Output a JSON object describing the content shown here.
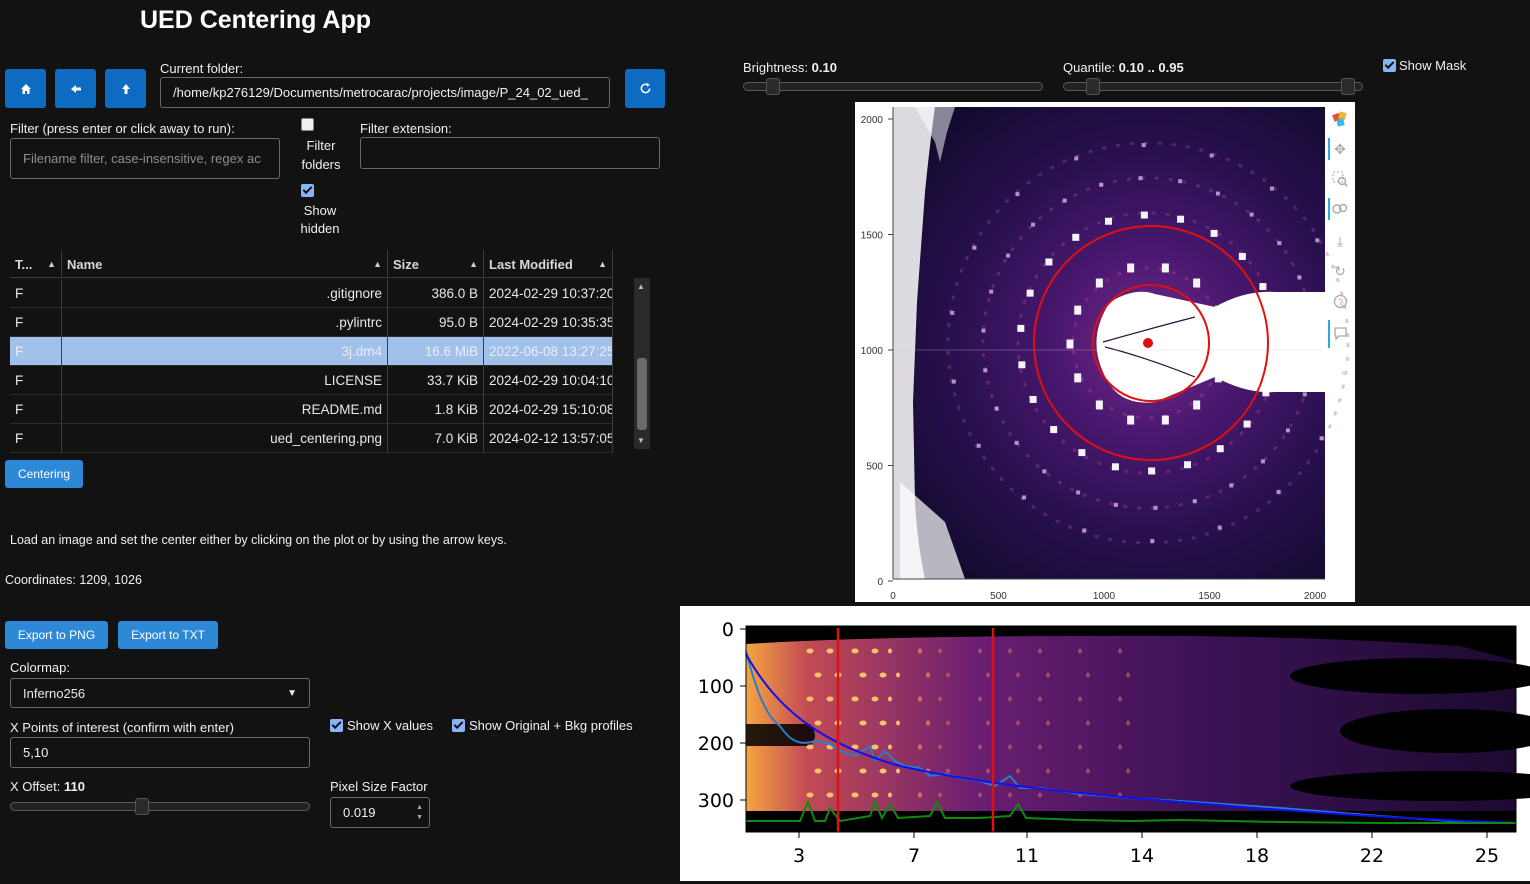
{
  "app": {
    "title": "UED Centering App"
  },
  "file_browser": {
    "current_folder_label": "Current folder:",
    "current_folder_value": "/home/kp276129/Documents/metrocarac/projects/image/P_24_02_ued_",
    "filter_label": "Filter (press enter or click away to run):",
    "filter_placeholder": "Filename filter, case-insensitive, regex ac",
    "filter_folders_label_1": "Filter",
    "filter_folders_label_2": "folders",
    "show_hidden_label_1": "Show",
    "show_hidden_label_2": "hidden",
    "filter_extension_label": "Filter extension:",
    "filter_extension_value": "",
    "icons": [
      "home-icon",
      "arrow-left-icon",
      "arrow-up-icon",
      "refresh-icon"
    ]
  },
  "table": {
    "columns": [
      "T...",
      "Name",
      "Size",
      "Last Modified"
    ],
    "rows": [
      {
        "type": "F",
        "name": ".gitignore",
        "size": "386.0 B",
        "modified": "2024-02-29 10:37:20"
      },
      {
        "type": "F",
        "name": ".pylintrc",
        "size": "95.0 B",
        "modified": "2024-02-29 10:35:35"
      },
      {
        "type": "F",
        "name": "3j.dm4",
        "size": "16.6 MiB",
        "modified": "2022-06-08 13:27:25"
      },
      {
        "type": "F",
        "name": "LICENSE",
        "size": "33.7 KiB",
        "modified": "2024-02-29 10:04:10"
      },
      {
        "type": "F",
        "name": "README.md",
        "size": "1.8 KiB",
        "modified": "2024-02-29 15:10:08"
      },
      {
        "type": "F",
        "name": "ued_centering.png",
        "size": "7.0 KiB",
        "modified": "2024-02-12 13:57:05"
      }
    ],
    "selected_index": 2
  },
  "controls": {
    "centering_button": "Centering",
    "instructions": "Load an image and set the center either by clicking on the plot or by using the arrow keys.",
    "coordinates_text": "Coordinates: 1209, 1026",
    "export_png": "Export to PNG",
    "export_txt": "Export to TXT",
    "colormap_label": "Colormap:",
    "colormap_value": "Inferno256",
    "x_points_label": "X Points of interest (confirm with enter)",
    "x_points_value": "5,10",
    "show_x_values": "Show X values",
    "show_profiles": "Show Original + Bkg profiles",
    "x_offset_label": "X Offset: ",
    "x_offset_value": "110",
    "x_offset_fraction": 0.44,
    "pixel_size_label": "Pixel Size Factor",
    "pixel_size_value": "0.019"
  },
  "image_controls": {
    "brightness_label": "Brightness: ",
    "brightness_value": "0.10",
    "brightness_fraction": 0.1,
    "quantile_label": "Quantile: ",
    "quantile_value": "0.10 .. 0.95",
    "quantile_low": 0.1,
    "quantile_high": 0.95,
    "show_mask": "Show Mask"
  },
  "image_plot": {
    "y_ticks": [
      "2000",
      "1500",
      "1000",
      "500",
      "0"
    ],
    "x_ticks": [
      "0",
      "500",
      "1000",
      "1500",
      "2000"
    ],
    "center": [
      1209,
      1026
    ],
    "toolbar_icons": [
      "bokeh-logo-icon",
      "pan-icon",
      "box-zoom-icon",
      "wheel-zoom-icon",
      "save-icon",
      "reset-icon",
      "help-icon",
      "hover-icon"
    ],
    "colors": {
      "circle": "#e01010",
      "mask": "#ffffff"
    }
  },
  "profile_plot": {
    "y_ticks": [
      "0",
      "100",
      "200",
      "300"
    ],
    "x_ticks": [
      "3",
      "7",
      "11",
      "14",
      "18",
      "22",
      "25"
    ],
    "colors": {
      "markers": "#e01010",
      "profile": "#2a7ec8",
      "background": "#1010ee",
      "subtracted": "#0f8a0f"
    }
  }
}
